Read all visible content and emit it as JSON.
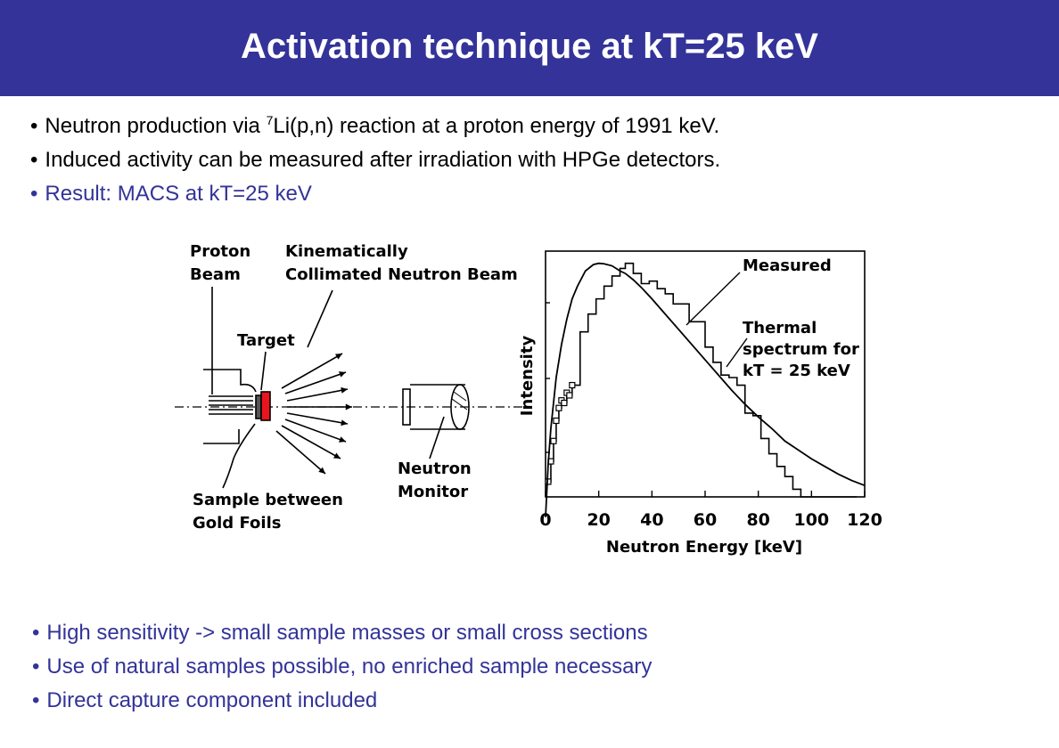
{
  "title": "Activation technique at kT=25 keV",
  "top_bullets": [
    {
      "pre": "Neutron  production via ",
      "sup": "7",
      "post": "Li(p,n) reaction at a proton energy of 1991 keV."
    },
    {
      "text": "Induced activity can be measured after irradiation with HPGe detectors."
    },
    {
      "text": "Result: MACS at kT=25 keV"
    }
  ],
  "bullet_glyph": "•",
  "diagram": {
    "proton_beam": [
      "Proton",
      "Beam"
    ],
    "kinematic": [
      "Kinematically",
      "Collimated Neutron Beam"
    ],
    "target": "Target",
    "sample": [
      "Sample between",
      "Gold Foils"
    ],
    "monitor": [
      "Neutron",
      "Monitor"
    ]
  },
  "chart_data": {
    "type": "line",
    "xlabel": "Neutron Energy [keV]",
    "ylabel": "Intensity",
    "xlim": [
      0,
      120
    ],
    "x_ticks": [
      "0",
      "20",
      "40",
      "60",
      "80",
      "100",
      "120"
    ],
    "annotations": [
      {
        "text": "Measured"
      },
      {
        "lines": [
          "Thermal",
          "spectrum for",
          "kT = 25 keV"
        ]
      }
    ],
    "series": [
      {
        "name": "Measured",
        "style": "step",
        "x": [
          1,
          2,
          3,
          4,
          5,
          6,
          7,
          8,
          9,
          10,
          13,
          16,
          19,
          22,
          25,
          28,
          30,
          33,
          36,
          39,
          42,
          45,
          48,
          51,
          54,
          57,
          60,
          63,
          66,
          69,
          72,
          75,
          78,
          81,
          84,
          87,
          90,
          93,
          96,
          99,
          102,
          105,
          108,
          111,
          114
        ],
        "y": [
          0.14,
          0.22,
          0.3,
          0.38,
          0.43,
          0.46,
          0.45,
          0.49,
          0.48,
          0.52,
          0.73,
          0.8,
          0.86,
          0.91,
          0.95,
          0.98,
          1.0,
          0.96,
          0.92,
          0.93,
          0.9,
          0.88,
          0.84,
          0.84,
          0.77,
          0.77,
          0.67,
          0.61,
          0.56,
          0.55,
          0.52,
          0.41,
          0.4,
          0.31,
          0.25,
          0.2,
          0.16,
          0.11,
          0.07,
          0.05,
          0.03,
          0.02,
          0.01,
          0.005,
          0.0
        ]
      },
      {
        "name": "Thermal spectrum for kT = 25 keV",
        "style": "line",
        "x": [
          0,
          1,
          2,
          4,
          6,
          8,
          10,
          12,
          15,
          18,
          20,
          22,
          25,
          28,
          30,
          33,
          36,
          40,
          45,
          50,
          55,
          60,
          65,
          70,
          75,
          80,
          85,
          90,
          95,
          100,
          105,
          110,
          115,
          120
        ],
        "y": [
          0.0,
          0.21,
          0.35,
          0.55,
          0.68,
          0.78,
          0.86,
          0.91,
          0.97,
          0.995,
          1.0,
          0.998,
          0.99,
          0.97,
          0.96,
          0.935,
          0.905,
          0.86,
          0.8,
          0.74,
          0.68,
          0.62,
          0.56,
          0.5,
          0.445,
          0.395,
          0.35,
          0.3,
          0.265,
          0.23,
          0.2,
          0.17,
          0.145,
          0.125
        ]
      }
    ]
  },
  "bottom_bullets": [
    "High sensitivity -> small sample masses or small cross sections",
    "Use of natural samples possible, no enriched sample necessary",
    "Direct capture component included"
  ],
  "colors": {
    "header": "#333399",
    "accent": "#333399",
    "target": "#e8141e"
  }
}
